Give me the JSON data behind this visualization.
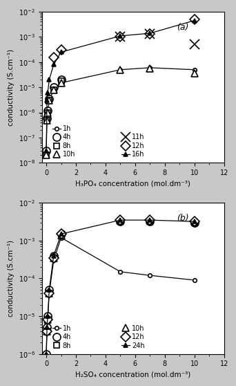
{
  "panel_a": {
    "title": "(a)",
    "xlabel": "H₃PO₄ concentration (mol.dm⁻³)",
    "ylabel": "conductivity (S.cm⁻¹)",
    "xlim": [
      -0.3,
      12
    ],
    "ylim": [
      1e-08,
      0.01
    ],
    "series": {
      "1h": {
        "x": [
          0.0,
          0.05,
          0.1,
          0.2,
          0.5,
          1.0,
          5.0,
          7.0,
          10.0
        ],
        "y": [
          3e-08,
          5e-07,
          1e-06,
          3e-06,
          8e-06,
          1.5e-05,
          5e-05,
          6e-05,
          5e-05
        ],
        "marker": "o",
        "markersize": 4,
        "linestyle": "-",
        "filled": false
      },
      "4h": {
        "x": [
          0.0,
          0.05,
          0.1,
          0.2,
          0.5,
          1.0
        ],
        "y": [
          3e-08,
          6e-07,
          1.2e-06,
          3.5e-06,
          1e-05,
          2e-05
        ],
        "marker": "o",
        "markersize": 8,
        "linestyle": "none",
        "filled": false
      },
      "8h": {
        "x": [
          0.0,
          0.05,
          0.1,
          0.2,
          0.5,
          1.0
        ],
        "y": [
          2e-08,
          5e-07,
          1e-06,
          3e-06,
          8e-06,
          1.8e-05
        ],
        "marker": "s",
        "markersize": 6,
        "linestyle": "none",
        "filled": false
      },
      "10h": {
        "x": [
          0.0,
          0.05,
          0.1,
          0.2,
          0.5,
          1.0,
          5.0,
          7.0,
          10.0
        ],
        "y": [
          2e-08,
          5e-07,
          1e-06,
          3e-06,
          8e-06,
          1.5e-05,
          5e-05,
          5.5e-05,
          3.5e-05
        ],
        "marker": "^",
        "markersize": 7,
        "linestyle": "none",
        "filled": false
      },
      "11h": {
        "x": [
          5.0,
          7.0,
          10.0
        ],
        "y": [
          0.001,
          0.0013,
          0.0005
        ],
        "marker": "x",
        "markersize": 10,
        "linestyle": "none",
        "filled": false
      },
      "12h": {
        "x": [
          0.5,
          1.0,
          5.0,
          7.0,
          10.0
        ],
        "y": [
          0.00015,
          0.0003,
          0.001,
          0.0013,
          0.005
        ],
        "marker": "D",
        "markersize": 7,
        "linestyle": "none",
        "filled": false
      },
      "16h": {
        "x": [
          0.0,
          0.05,
          0.1,
          0.2,
          0.5,
          1.0,
          5.0,
          7.0,
          10.0
        ],
        "y": [
          3e-08,
          3e-06,
          6e-06,
          2e-05,
          8e-05,
          0.00025,
          0.0011,
          0.0014,
          0.0045
        ],
        "marker": "^",
        "markersize": 5,
        "linestyle": "-",
        "filled": true
      }
    },
    "legend_col1": [
      {
        "label": "1h",
        "marker": "o",
        "ms": 4,
        "ls": "-",
        "filled": false
      },
      {
        "label": "4h",
        "marker": "o",
        "ms": 8,
        "ls": "none",
        "filled": false
      },
      {
        "label": "8h",
        "marker": "s",
        "ms": 6,
        "ls": "none",
        "filled": false
      },
      {
        "label": "10h",
        "marker": "^",
        "ms": 7,
        "ls": "none",
        "filled": false
      }
    ],
    "legend_col2": [
      {
        "label": "11h",
        "marker": "x",
        "ms": 10,
        "ls": "none",
        "filled": false
      },
      {
        "label": "12h",
        "marker": "D",
        "ms": 7,
        "ls": "none",
        "filled": false
      },
      {
        "label": "16h",
        "marker": "^",
        "ms": 5,
        "ls": "-",
        "filled": true
      }
    ]
  },
  "panel_b": {
    "title": "(b)",
    "xlabel": "H₂SO₄ concentration (mol.dm⁻³)",
    "ylabel": "conductivity (S.cm⁻¹)",
    "xlim": [
      -0.3,
      12
    ],
    "ylim": [
      1e-06,
      0.01
    ],
    "series": {
      "1h": {
        "x": [
          0.0,
          0.05,
          0.1,
          0.2,
          0.5,
          1.0,
          5.0,
          7.0,
          10.0
        ],
        "y": [
          1e-06,
          4e-06,
          8e-06,
          4e-05,
          0.0003,
          0.0012,
          0.00015,
          0.00012,
          9e-05
        ],
        "marker": "o",
        "markersize": 4,
        "linestyle": "-",
        "filled": false
      },
      "4h": {
        "x": [
          0.0,
          0.05,
          0.1,
          0.2,
          0.5,
          1.0,
          5.0,
          7.0,
          10.0
        ],
        "y": [
          1e-06,
          5e-06,
          1e-05,
          5e-05,
          0.0004,
          0.0015,
          0.0032,
          0.0032,
          0.003
        ],
        "marker": "o",
        "markersize": 8,
        "linestyle": "none",
        "filled": false
      },
      "8h": {
        "x": [
          0.0,
          0.05,
          0.1,
          0.2,
          0.5,
          1.0,
          5.0,
          7.0,
          10.0
        ],
        "y": [
          8e-07,
          4e-06,
          8e-06,
          4e-05,
          0.00035,
          0.0014,
          0.0032,
          0.0032,
          0.003
        ],
        "marker": "s",
        "markersize": 6,
        "linestyle": "none",
        "filled": false
      },
      "10h": {
        "x": [
          0.0,
          0.05,
          0.1,
          0.2,
          0.5,
          1.0,
          5.0,
          7.0,
          10.0
        ],
        "y": [
          8e-07,
          4e-06,
          8e-06,
          4e-05,
          0.00035,
          0.0014,
          0.0035,
          0.0035,
          0.0032
        ],
        "marker": "^",
        "markersize": 7,
        "linestyle": "none",
        "filled": false
      },
      "12h": {
        "x": [
          0.0,
          0.05,
          0.1,
          0.2,
          0.5,
          1.0,
          5.0,
          7.0,
          10.0
        ],
        "y": [
          8e-07,
          4e-06,
          8e-06,
          4e-05,
          0.00035,
          0.0015,
          0.0035,
          0.0035,
          0.0032
        ],
        "marker": "D",
        "markersize": 7,
        "linestyle": "none",
        "filled": false
      },
      "24h": {
        "x": [
          0.0,
          0.05,
          0.1,
          0.2,
          0.5,
          1.0,
          5.0,
          7.0,
          10.0
        ],
        "y": [
          1e-06,
          5e-06,
          1e-05,
          5e-05,
          0.0004,
          0.0015,
          0.0035,
          0.0035,
          0.0032
        ],
        "marker": "^",
        "markersize": 5,
        "linestyle": "-",
        "filled": true
      }
    },
    "legend_col1": [
      {
        "label": "1h",
        "marker": "o",
        "ms": 4,
        "ls": "-",
        "filled": false
      },
      {
        "label": "4h",
        "marker": "o",
        "ms": 8,
        "ls": "none",
        "filled": false
      },
      {
        "label": "8h",
        "marker": "s",
        "ms": 6,
        "ls": "none",
        "filled": false
      }
    ],
    "legend_col2": [
      {
        "label": "10h",
        "marker": "^",
        "ms": 7,
        "ls": "none",
        "filled": false
      },
      {
        "label": "12h",
        "marker": "D",
        "ms": 7,
        "ls": "none",
        "filled": false
      },
      {
        "label": "24h",
        "marker": "^",
        "ms": 5,
        "ls": "-",
        "filled": true
      }
    ]
  },
  "fig_bg": "#c8c8c8",
  "plot_bg": "#ffffff"
}
